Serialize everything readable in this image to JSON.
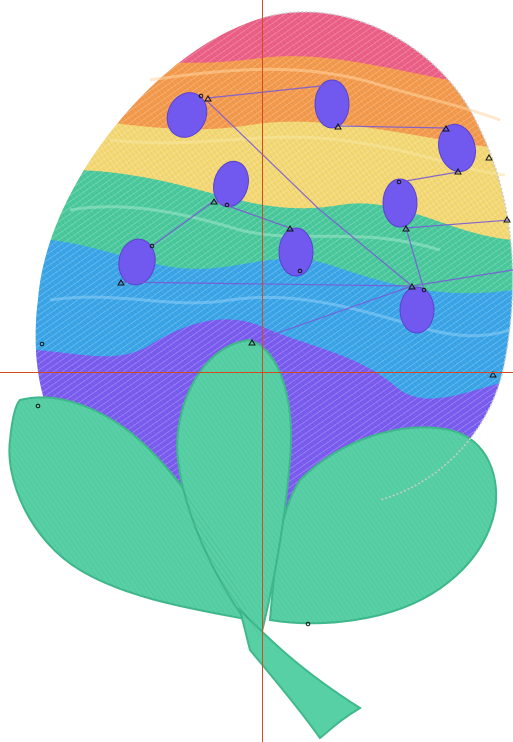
{
  "canvas": {
    "background": "#ffffff",
    "crosshair_color": "#d44a1e"
  },
  "design": {
    "stripe_colors": {
      "red": "#ec5f86",
      "orange": "#f49a4c",
      "yellow": "#f4d873",
      "green": "#49c99c",
      "blue": "#3aa5e8",
      "purple": "#7a5cf0",
      "leaf": "#58d0a6",
      "spot": "#7158ee",
      "outline": "#c8ccd2",
      "travel": "#7a5bd6"
    },
    "icons": [
      "stitch-marker-icon",
      "end-marker-icon"
    ]
  }
}
